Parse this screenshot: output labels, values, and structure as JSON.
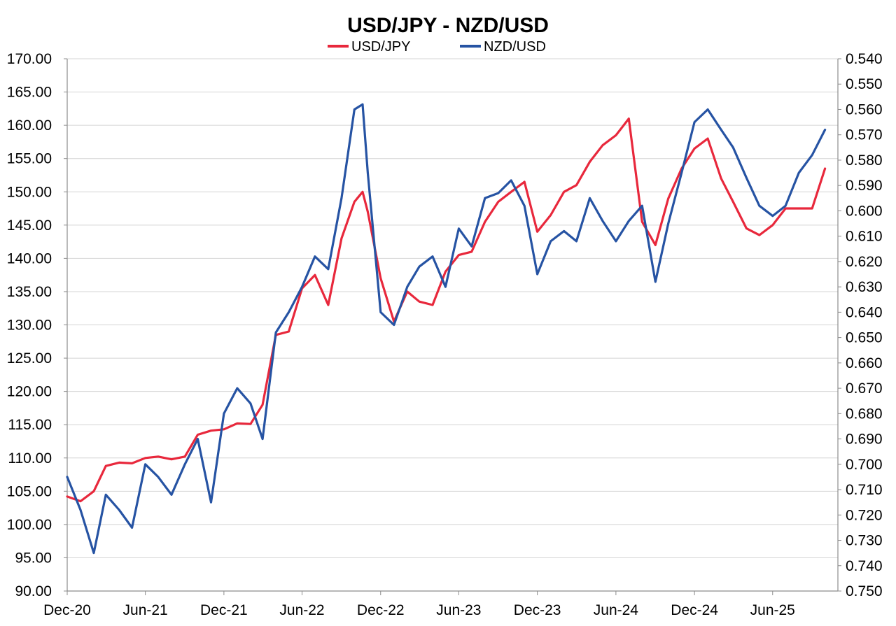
{
  "chart_data": {
    "type": "line",
    "title": "USD/JPY - NZD/USD",
    "x_tick_labels": [
      "Dec-20",
      "Jun-21",
      "Dec-21",
      "Jun-22",
      "Dec-22",
      "Jun-23",
      "Dec-23",
      "Jun-24",
      "Dec-24",
      "Jun-25"
    ],
    "xlim": [
      "2020-12-01",
      "2025-10-31"
    ],
    "left_axis": {
      "range": [
        90,
        170
      ],
      "ticks": [
        "90.00",
        "95.00",
        "100.00",
        "105.00",
        "110.00",
        "115.00",
        "120.00",
        "125.00",
        "130.00",
        "135.00",
        "140.00",
        "145.00",
        "150.00",
        "155.00",
        "160.00",
        "165.00",
        "170.00"
      ]
    },
    "right_axis": {
      "range": [
        0.54,
        0.75
      ],
      "inverted": true,
      "ticks": [
        "0.540",
        "0.550",
        "0.560",
        "0.570",
        "0.580",
        "0.590",
        "0.600",
        "0.610",
        "0.620",
        "0.630",
        "0.640",
        "0.650",
        "0.660",
        "0.670",
        "0.680",
        "0.690",
        "0.700",
        "0.710",
        "0.720",
        "0.730",
        "0.740",
        "0.750"
      ]
    },
    "grid": true,
    "legend": "top-center",
    "series": [
      {
        "name": "USD/JPY",
        "axis": "left",
        "color": "#e8283c",
        "x": [
          "2020-12-01",
          "2021-01-01",
          "2021-02-01",
          "2021-03-01",
          "2021-04-01",
          "2021-05-01",
          "2021-06-01",
          "2021-07-01",
          "2021-08-01",
          "2021-09-01",
          "2021-10-01",
          "2021-11-01",
          "2021-12-01",
          "2022-01-01",
          "2022-02-01",
          "2022-03-01",
          "2022-04-01",
          "2022-05-01",
          "2022-06-01",
          "2022-07-01",
          "2022-08-01",
          "2022-09-01",
          "2022-10-01",
          "2022-10-20",
          "2022-11-01",
          "2022-12-01",
          "2023-01-01",
          "2023-02-01",
          "2023-03-01",
          "2023-04-01",
          "2023-05-01",
          "2023-06-01",
          "2023-07-01",
          "2023-08-01",
          "2023-09-01",
          "2023-10-01",
          "2023-11-01",
          "2023-12-01",
          "2024-01-01",
          "2024-02-01",
          "2024-03-01",
          "2024-04-01",
          "2024-05-01",
          "2024-06-01",
          "2024-07-01",
          "2024-08-01",
          "2024-09-01",
          "2024-10-01",
          "2024-11-01",
          "2024-12-01",
          "2025-01-01",
          "2025-02-01",
          "2025-03-01",
          "2025-04-01",
          "2025-05-01",
          "2025-06-01",
          "2025-07-01",
          "2025-08-01",
          "2025-09-01",
          "2025-10-01"
        ],
        "values": [
          104.2,
          103.5,
          105.0,
          108.8,
          109.3,
          109.2,
          110.0,
          110.2,
          109.8,
          110.2,
          113.5,
          114.1,
          114.3,
          115.2,
          115.1,
          118.0,
          128.5,
          129.0,
          135.5,
          137.5,
          133.0,
          143.0,
          148.5,
          150.0,
          147.0,
          137.0,
          130.5,
          135.0,
          133.5,
          133.0,
          138.0,
          140.5,
          141.0,
          145.5,
          148.5,
          150.0,
          151.5,
          144.0,
          146.5,
          150.0,
          151.0,
          154.5,
          157.0,
          158.5,
          161.0,
          145.5,
          142.0,
          149.0,
          153.5,
          156.5,
          158.0,
          152.0,
          148.5,
          144.5,
          143.5,
          145.0,
          147.5,
          147.5,
          147.5,
          153.5
        ]
      },
      {
        "name": "NZD/USD",
        "axis": "right",
        "color": "#2653a3",
        "x": [
          "2020-12-01",
          "2021-01-01",
          "2021-02-01",
          "2021-03-01",
          "2021-04-01",
          "2021-05-01",
          "2021-06-01",
          "2021-07-01",
          "2021-08-01",
          "2021-09-01",
          "2021-10-01",
          "2021-11-01",
          "2021-12-01",
          "2022-01-01",
          "2022-02-01",
          "2022-03-01",
          "2022-04-01",
          "2022-05-01",
          "2022-06-01",
          "2022-07-01",
          "2022-08-01",
          "2022-09-01",
          "2022-10-01",
          "2022-10-20",
          "2022-11-01",
          "2022-12-01",
          "2023-01-01",
          "2023-02-01",
          "2023-03-01",
          "2023-04-01",
          "2023-05-01",
          "2023-06-01",
          "2023-07-01",
          "2023-08-01",
          "2023-09-01",
          "2023-10-01",
          "2023-11-01",
          "2023-12-01",
          "2024-01-01",
          "2024-02-01",
          "2024-03-01",
          "2024-04-01",
          "2024-05-01",
          "2024-06-01",
          "2024-07-01",
          "2024-08-01",
          "2024-09-01",
          "2024-10-01",
          "2024-11-01",
          "2024-12-01",
          "2025-01-01",
          "2025-02-01",
          "2025-03-01",
          "2025-04-01",
          "2025-05-01",
          "2025-06-01",
          "2025-07-01",
          "2025-08-01",
          "2025-09-01",
          "2025-10-01"
        ],
        "values": [
          0.705,
          0.718,
          0.735,
          0.712,
          0.718,
          0.725,
          0.7,
          0.705,
          0.712,
          0.7,
          0.69,
          0.715,
          0.68,
          0.67,
          0.676,
          0.69,
          0.648,
          0.64,
          0.63,
          0.618,
          0.623,
          0.595,
          0.56,
          0.558,
          0.585,
          0.64,
          0.645,
          0.63,
          0.622,
          0.618,
          0.63,
          0.607,
          0.614,
          0.595,
          0.593,
          0.588,
          0.598,
          0.625,
          0.612,
          0.608,
          0.612,
          0.595,
          0.604,
          0.612,
          0.604,
          0.598,
          0.628,
          0.605,
          0.585,
          0.565,
          0.56,
          0.568,
          0.575,
          0.587,
          0.598,
          0.602,
          0.598,
          0.585,
          0.578,
          0.568
        ]
      }
    ]
  }
}
